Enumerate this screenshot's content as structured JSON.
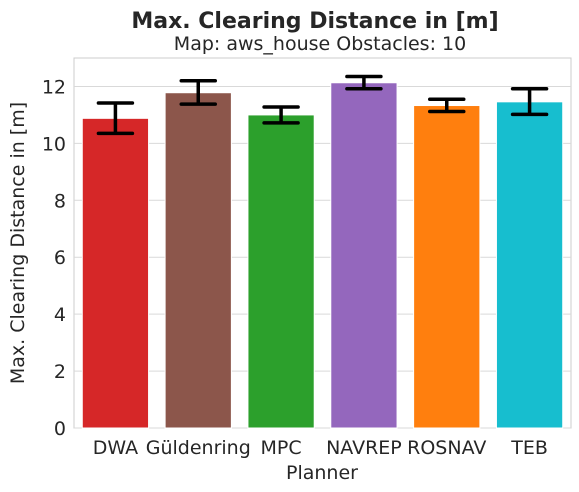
{
  "chart_data": {
    "type": "bar",
    "title": "Max. Clearing Distance in [m]",
    "subtitle": "Map: aws_house Obstacles: 10",
    "xlabel": "Planner",
    "ylabel": "Max. Clearing Distance in [m]",
    "ylim": [
      0,
      13
    ],
    "yticks": [
      0,
      2,
      4,
      6,
      8,
      10,
      12
    ],
    "ytick_labels": [
      "0",
      "2",
      "4",
      "6",
      "8",
      "10",
      "12"
    ],
    "grid": "horizontal",
    "categories": [
      "DWA",
      "Güldenring",
      "MPC",
      "NAVREP",
      "ROSNAV",
      "TEB"
    ],
    "values": [
      10.88,
      11.78,
      11.0,
      12.13,
      11.33,
      11.46
    ],
    "error_low": [
      10.35,
      11.38,
      10.72,
      11.92,
      11.12,
      11.02
    ],
    "error_high": [
      11.42,
      12.2,
      11.28,
      12.35,
      11.55,
      11.92
    ],
    "colors": [
      "#d62728",
      "#8c564b",
      "#2ca02c",
      "#9467bd",
      "#ff7f0e",
      "#17becf"
    ]
  }
}
